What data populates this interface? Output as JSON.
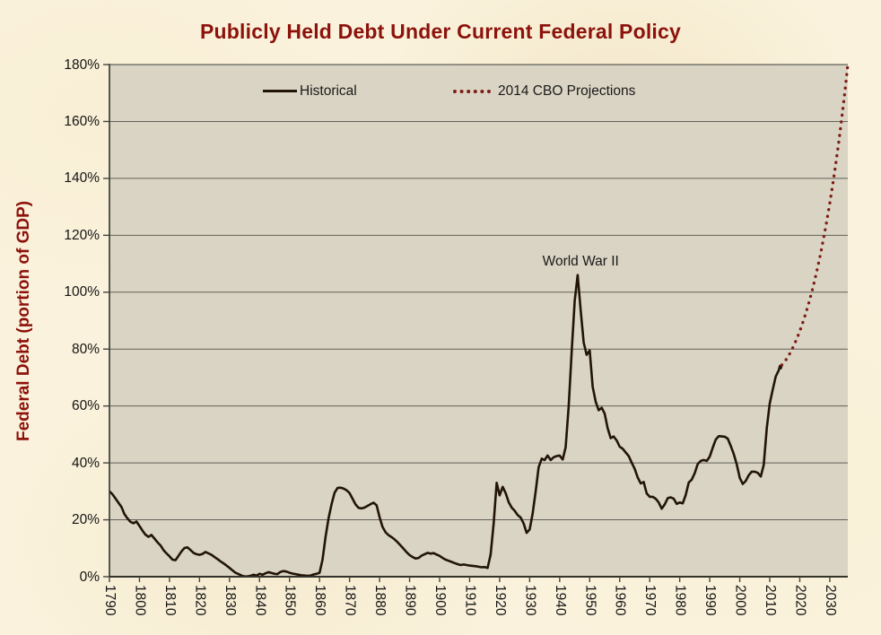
{
  "title": "Publicly Held Debt Under Current Federal Policy",
  "y_axis": {
    "title": "Federal Debt (portion of GDP)"
  },
  "colors": {
    "page_background": "#FAF2DC",
    "plot_background": "#D9D4C3",
    "gridline": "#62625A",
    "axis": "#33332C",
    "tick": "#45453E",
    "historical_line": "#221409",
    "projection_line": "#7E1D15",
    "title_text": "#8C120B",
    "tick_label_text": "#141414",
    "annotation_text": "#1A1A1A"
  },
  "chart_data": {
    "type": "line",
    "title": "Publicly Held Debt Under Current Federal Policy",
    "xlabel": "",
    "ylabel": "Federal Debt (portion of GDP)",
    "xlim": [
      1790,
      2036
    ],
    "ylim": [
      0,
      180
    ],
    "x_ticks": [
      1790,
      1800,
      1810,
      1820,
      1830,
      1840,
      1850,
      1860,
      1870,
      1880,
      1890,
      1900,
      1910,
      1920,
      1930,
      1940,
      1950,
      1960,
      1970,
      1980,
      1990,
      2000,
      2010,
      2020,
      2030
    ],
    "x_tick_labels": [
      "1790",
      "1800",
      "1810",
      "1820",
      "1830",
      "1840",
      "1850",
      "1860",
      "1870",
      "1880",
      "1890",
      "1900",
      "1910",
      "1920",
      "1930",
      "1940",
      "1950",
      "1960",
      "1970",
      "1980",
      "1990",
      "2000",
      "2010",
      "2020",
      "2030"
    ],
    "y_ticks": [
      0,
      20,
      40,
      60,
      80,
      100,
      120,
      140,
      160,
      180
    ],
    "y_tick_labels": [
      "0%",
      "20%",
      "40%",
      "60%",
      "80%",
      "100%",
      "120%",
      "140%",
      "160%",
      "180%"
    ],
    "x_tick_label_orientation": "vertical",
    "grid": "horizontal",
    "legend_position": "top-inside",
    "annotations": [
      {
        "text": "World War II",
        "year": 1947,
        "value": 113.5
      }
    ],
    "series": [
      {
        "name": "Historical",
        "style": "solid",
        "color": "#221409",
        "points": [
          [
            1790,
            30
          ],
          [
            1791,
            29
          ],
          [
            1792,
            27.5
          ],
          [
            1793,
            26
          ],
          [
            1794,
            24.5
          ],
          [
            1795,
            22
          ],
          [
            1796,
            20.5
          ],
          [
            1797,
            19.3
          ],
          [
            1798,
            18.8
          ],
          [
            1799,
            19.4
          ],
          [
            1800,
            17.8
          ],
          [
            1801,
            16.2
          ],
          [
            1802,
            14.8
          ],
          [
            1803,
            14
          ],
          [
            1804,
            14.7
          ],
          [
            1805,
            13.4
          ],
          [
            1806,
            12.1
          ],
          [
            1807,
            11
          ],
          [
            1808,
            9.4
          ],
          [
            1809,
            8.2
          ],
          [
            1810,
            7.2
          ],
          [
            1811,
            6
          ],
          [
            1812,
            5.8
          ],
          [
            1813,
            7.3
          ],
          [
            1814,
            8.9
          ],
          [
            1815,
            10.1
          ],
          [
            1816,
            10.3
          ],
          [
            1817,
            9.4
          ],
          [
            1818,
            8.4
          ],
          [
            1819,
            7.9
          ],
          [
            1820,
            7.7
          ],
          [
            1821,
            8
          ],
          [
            1822,
            8.7
          ],
          [
            1823,
            8.2
          ],
          [
            1824,
            7.7
          ],
          [
            1825,
            6.9
          ],
          [
            1826,
            6.2
          ],
          [
            1827,
            5.4
          ],
          [
            1828,
            4.7
          ],
          [
            1829,
            3.9
          ],
          [
            1830,
            3.1
          ],
          [
            1831,
            2.2
          ],
          [
            1832,
            1.4
          ],
          [
            1833,
            0.9
          ],
          [
            1834,
            0.4
          ],
          [
            1835,
            0.1
          ],
          [
            1836,
            0.1
          ],
          [
            1837,
            0.3
          ],
          [
            1838,
            0.7
          ],
          [
            1839,
            0.4
          ],
          [
            1840,
            1
          ],
          [
            1841,
            0.7
          ],
          [
            1842,
            1.2
          ],
          [
            1843,
            1.6
          ],
          [
            1844,
            1.3
          ],
          [
            1845,
            1
          ],
          [
            1846,
            0.9
          ],
          [
            1847,
            1.7
          ],
          [
            1848,
            2
          ],
          [
            1849,
            1.8
          ],
          [
            1850,
            1.4
          ],
          [
            1851,
            1.1
          ],
          [
            1852,
            0.9
          ],
          [
            1853,
            0.7
          ],
          [
            1854,
            0.5
          ],
          [
            1855,
            0.4
          ],
          [
            1856,
            0.3
          ],
          [
            1857,
            0.4
          ],
          [
            1858,
            0.8
          ],
          [
            1859,
            1
          ],
          [
            1860,
            1.4
          ],
          [
            1861,
            6
          ],
          [
            1862,
            14
          ],
          [
            1863,
            20.5
          ],
          [
            1864,
            25.5
          ],
          [
            1865,
            29.5
          ],
          [
            1866,
            31.2
          ],
          [
            1867,
            31.3
          ],
          [
            1868,
            31
          ],
          [
            1869,
            30.4
          ],
          [
            1870,
            29.4
          ],
          [
            1871,
            27.4
          ],
          [
            1872,
            25.4
          ],
          [
            1873,
            24.2
          ],
          [
            1874,
            24
          ],
          [
            1875,
            24.3
          ],
          [
            1876,
            24.9
          ],
          [
            1877,
            25.5
          ],
          [
            1878,
            26
          ],
          [
            1879,
            25.1
          ],
          [
            1880,
            20.9
          ],
          [
            1881,
            17.5
          ],
          [
            1882,
            15.6
          ],
          [
            1883,
            14.6
          ],
          [
            1884,
            13.9
          ],
          [
            1885,
            13.1
          ],
          [
            1886,
            12.1
          ],
          [
            1887,
            11
          ],
          [
            1888,
            9.8
          ],
          [
            1889,
            8.6
          ],
          [
            1890,
            7.6
          ],
          [
            1891,
            6.9
          ],
          [
            1892,
            6.4
          ],
          [
            1893,
            6.6
          ],
          [
            1894,
            7.4
          ],
          [
            1895,
            7.9
          ],
          [
            1896,
            8.4
          ],
          [
            1897,
            8.1
          ],
          [
            1898,
            8.3
          ],
          [
            1899,
            7.8
          ],
          [
            1900,
            7.3
          ],
          [
            1901,
            6.6
          ],
          [
            1902,
            6
          ],
          [
            1903,
            5.6
          ],
          [
            1904,
            5.2
          ],
          [
            1905,
            4.8
          ],
          [
            1906,
            4.4
          ],
          [
            1907,
            4.1
          ],
          [
            1908,
            4.3
          ],
          [
            1909,
            4.1
          ],
          [
            1910,
            3.9
          ],
          [
            1911,
            3.8
          ],
          [
            1912,
            3.7
          ],
          [
            1913,
            3.5
          ],
          [
            1914,
            3.3
          ],
          [
            1915,
            3.4
          ],
          [
            1916,
            3.1
          ],
          [
            1917,
            7.8
          ],
          [
            1918,
            18.5
          ],
          [
            1919,
            33
          ],
          [
            1920,
            28.6
          ],
          [
            1921,
            31.6
          ],
          [
            1922,
            29.4
          ],
          [
            1923,
            26.2
          ],
          [
            1924,
            24.3
          ],
          [
            1925,
            23.2
          ],
          [
            1926,
            21.7
          ],
          [
            1927,
            20.8
          ],
          [
            1928,
            18.7
          ],
          [
            1929,
            15.4
          ],
          [
            1930,
            16.6
          ],
          [
            1931,
            22.2
          ],
          [
            1932,
            30
          ],
          [
            1933,
            38.5
          ],
          [
            1934,
            41.5
          ],
          [
            1935,
            41
          ],
          [
            1936,
            42.6
          ],
          [
            1937,
            41
          ],
          [
            1938,
            42
          ],
          [
            1939,
            42.4
          ],
          [
            1940,
            42.6
          ],
          [
            1941,
            41.2
          ],
          [
            1942,
            45.5
          ],
          [
            1943,
            60
          ],
          [
            1944,
            79
          ],
          [
            1945,
            97
          ],
          [
            1946,
            106
          ],
          [
            1947,
            93.8
          ],
          [
            1948,
            82.3
          ],
          [
            1949,
            78
          ],
          [
            1950,
            79.5
          ],
          [
            1951,
            66.8
          ],
          [
            1952,
            61.5
          ],
          [
            1953,
            58.5
          ],
          [
            1954,
            59.4
          ],
          [
            1955,
            57.3
          ],
          [
            1956,
            52.1
          ],
          [
            1957,
            48.7
          ],
          [
            1958,
            49.3
          ],
          [
            1959,
            47.9
          ],
          [
            1960,
            45.7
          ],
          [
            1961,
            45
          ],
          [
            1962,
            43.7
          ],
          [
            1963,
            42.4
          ],
          [
            1964,
            40.1
          ],
          [
            1965,
            37.9
          ],
          [
            1966,
            34.9
          ],
          [
            1967,
            32.8
          ],
          [
            1968,
            33.3
          ],
          [
            1969,
            29.3
          ],
          [
            1970,
            28.1
          ],
          [
            1971,
            28.1
          ],
          [
            1972,
            27.4
          ],
          [
            1973,
            26.1
          ],
          [
            1974,
            23.9
          ],
          [
            1975,
            25.4
          ],
          [
            1976,
            27.6
          ],
          [
            1977,
            27.9
          ],
          [
            1978,
            27.4
          ],
          [
            1979,
            25.6
          ],
          [
            1980,
            26.1
          ],
          [
            1981,
            25.8
          ],
          [
            1982,
            28.7
          ],
          [
            1983,
            33.1
          ],
          [
            1984,
            34.1
          ],
          [
            1985,
            36.4
          ],
          [
            1986,
            39.6
          ],
          [
            1987,
            40.7
          ],
          [
            1988,
            41
          ],
          [
            1989,
            40.7
          ],
          [
            1990,
            42.2
          ],
          [
            1991,
            45.4
          ],
          [
            1992,
            48.2
          ],
          [
            1993,
            49.4
          ],
          [
            1994,
            49.3
          ],
          [
            1995,
            49.2
          ],
          [
            1996,
            48.5
          ],
          [
            1997,
            46
          ],
          [
            1998,
            43.1
          ],
          [
            1999,
            39.5
          ],
          [
            2000,
            34.7
          ],
          [
            2001,
            32.6
          ],
          [
            2002,
            33.7
          ],
          [
            2003,
            35.7
          ],
          [
            2004,
            36.9
          ],
          [
            2005,
            36.9
          ],
          [
            2006,
            36.5
          ],
          [
            2007,
            35.2
          ],
          [
            2008,
            39.3
          ],
          [
            2009,
            52.3
          ],
          [
            2010,
            60.9
          ],
          [
            2011,
            65.9
          ],
          [
            2012,
            70.4
          ],
          [
            2013,
            72.6
          ],
          [
            2013.4,
            74.1
          ],
          [
            2013.7,
            73.3
          ],
          [
            2014,
            74.4
          ]
        ]
      },
      {
        "name": "2014 CBO Projections",
        "style": "dotted",
        "color": "#7E1D15",
        "points": [
          [
            2014,
            74.4
          ],
          [
            2015,
            75.6
          ],
          [
            2016,
            77.2
          ],
          [
            2017,
            79
          ],
          [
            2018,
            81.2
          ],
          [
            2019,
            83.6
          ],
          [
            2020,
            86.3
          ],
          [
            2021,
            89.3
          ],
          [
            2022,
            92.6
          ],
          [
            2023,
            96.2
          ],
          [
            2024,
            100.1
          ],
          [
            2025,
            104.3
          ],
          [
            2026,
            108.9
          ],
          [
            2027,
            113.9
          ],
          [
            2028,
            119.3
          ],
          [
            2029,
            125.1
          ],
          [
            2030,
            131.3
          ],
          [
            2031,
            138
          ],
          [
            2032,
            145.2
          ],
          [
            2033,
            152.9
          ],
          [
            2034,
            161.3
          ],
          [
            2035,
            170.3
          ],
          [
            2036,
            180
          ]
        ]
      }
    ]
  }
}
